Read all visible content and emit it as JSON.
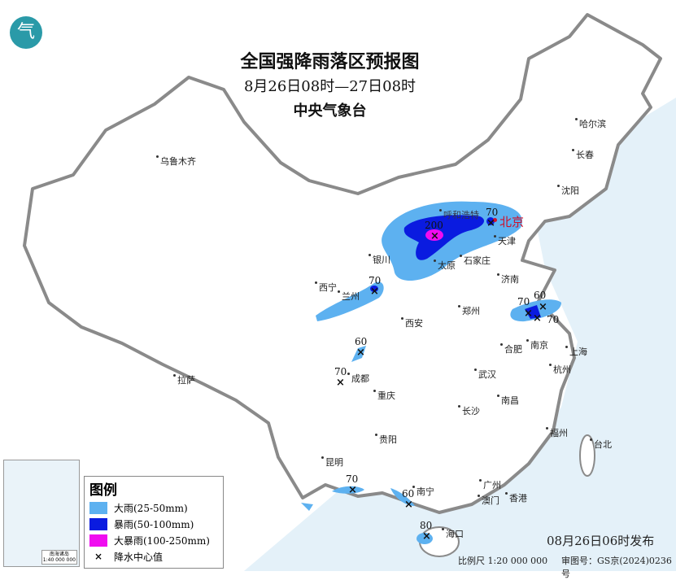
{
  "title": {
    "main": "全国强降雨落区预报图",
    "period": "8月26日08时—27日08时",
    "issuer": "中央气象台"
  },
  "colors": {
    "heavy_rain": "#5db1f0",
    "rainstorm": "#0a1be0",
    "heavy_rainstorm": "#f00cf0",
    "sea": "#e4f1f9",
    "border": "#8a8a8a"
  },
  "cities": [
    "乌鲁木齐",
    "哈尔滨",
    "长春",
    "沈阳",
    "北京",
    "天津",
    "呼和浩特",
    "银川",
    "太原",
    "石家庄",
    "济南",
    "西宁",
    "兰州",
    "郑州",
    "西安",
    "南京",
    "合肥",
    "上海",
    "杭州",
    "武汉",
    "成都",
    "拉萨",
    "重庆",
    "长沙",
    "南昌",
    "贵阳",
    "福州",
    "台北",
    "昆明",
    "南宁",
    "广州",
    "澳门",
    "香港",
    "海口"
  ],
  "centers": [
    "200",
    "70",
    "70",
    "60",
    "70",
    "70",
    "60",
    "70",
    "70",
    "60",
    "80"
  ],
  "legend": {
    "title": "图例",
    "items": [
      "大雨(25-50mm)",
      "暴雨(50-100mm)",
      "大暴雨(100-250mm)",
      "降水中心值"
    ],
    "marker": "×"
  },
  "inset": {
    "label": "南海诸岛",
    "scale": "1:40 000 000"
  },
  "footer": {
    "issued": "08月26日06时发布",
    "scale": "比例尺 1:20 000 000",
    "approval": "审图号：GS京(2024)0236号"
  },
  "logo": "气"
}
